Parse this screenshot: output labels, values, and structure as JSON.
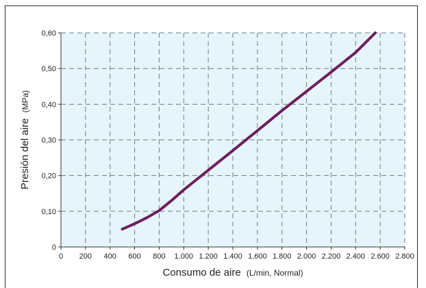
{
  "chart_data": {
    "type": "line",
    "title": "",
    "xlabel": "Consumo de aire",
    "xlabel_unit": "(L/min, Normal)",
    "ylabel": "Presión del aire",
    "ylabel_unit": "(MPa)",
    "xlim": [
      0,
      2800
    ],
    "ylim": [
      0,
      0.6
    ],
    "x_ticks": [
      "0",
      "200",
      "400",
      "600",
      "800",
      "1.000",
      "1.200",
      "1.400",
      "1.600",
      "1.800",
      "2.000",
      "2.200",
      "2.400",
      "2.600",
      "2.800"
    ],
    "y_ticks": [
      "0",
      "0,10",
      "0,20",
      "0,30",
      "0,40",
      "0,50",
      "0,60"
    ],
    "grid": true,
    "legend": "none",
    "colors": {
      "line": "#6b1f5e",
      "plot_bg": "#e6f4fb",
      "grid": "#6f7a80"
    },
    "series": [
      {
        "x": [
          500,
          600,
          700,
          800,
          900,
          1000,
          1200,
          1400,
          1600,
          1800,
          2000,
          2200,
          2400,
          2560
        ],
        "values": [
          0.05,
          0.065,
          0.082,
          0.102,
          0.13,
          0.16,
          0.215,
          0.27,
          0.326,
          0.382,
          0.436,
          0.49,
          0.545,
          0.6
        ]
      }
    ]
  }
}
